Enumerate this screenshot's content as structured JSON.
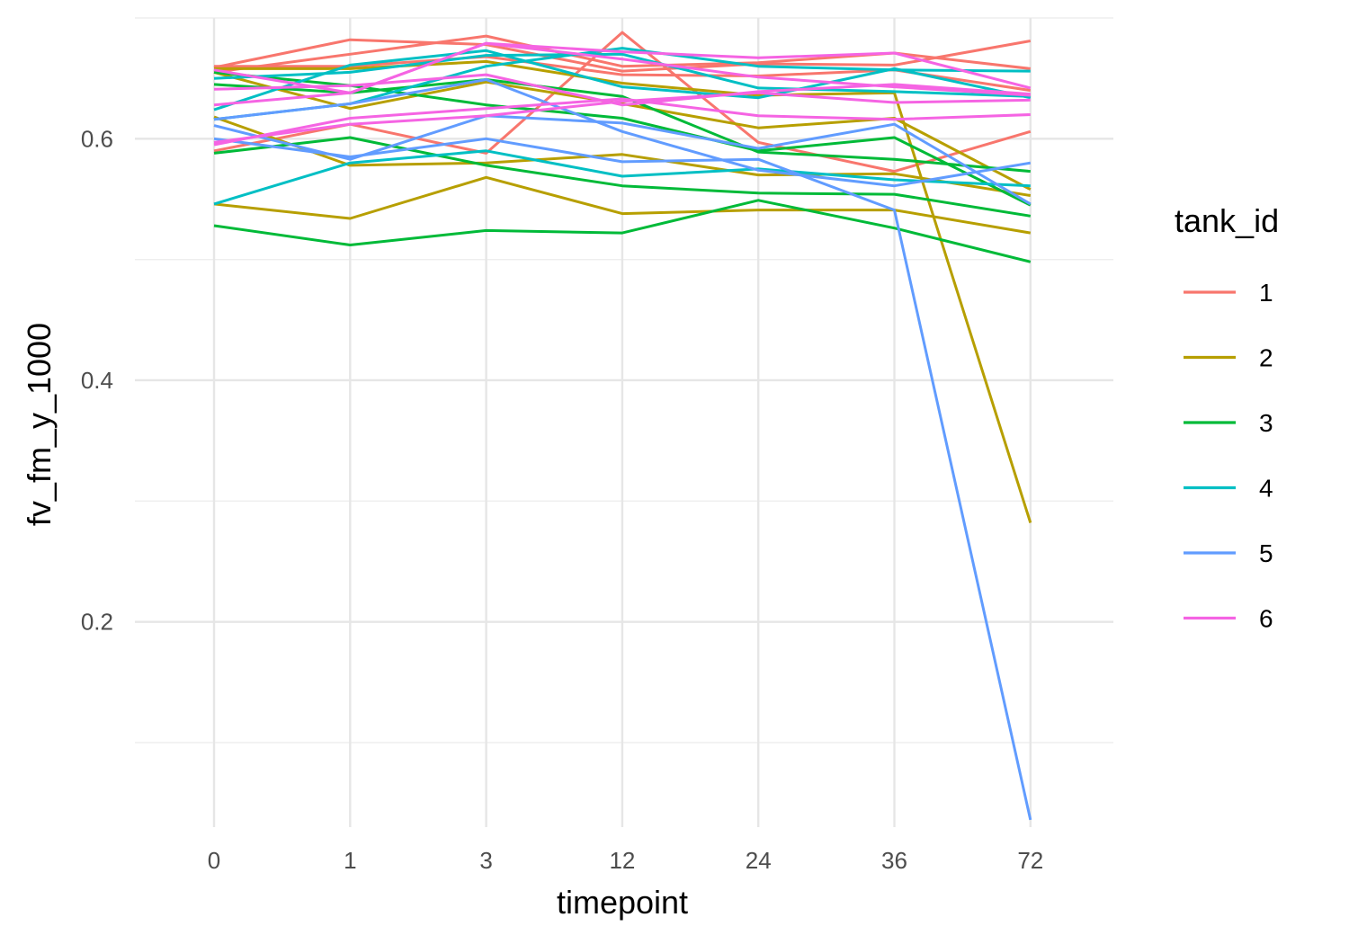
{
  "chart_data": {
    "type": "line",
    "title": "",
    "xlabel": "timepoint",
    "ylabel": "fv_fm_y_1000",
    "categories": [
      "0",
      "1",
      "3",
      "12",
      "24",
      "36",
      "72"
    ],
    "ylim": [
      0.03,
      0.7
    ],
    "yticks": [
      0.2,
      0.4,
      0.6
    ],
    "ytick_labels": [
      "0.2",
      "0.4",
      "0.6"
    ],
    "yminor": [
      0.1,
      0.3,
      0.5,
      0.7
    ],
    "grid": true,
    "legend": {
      "title": "tank_id",
      "position": "right",
      "entries": [
        {
          "label": "1",
          "color": "#F8766D"
        },
        {
          "label": "2",
          "color": "#B79F00"
        },
        {
          "label": "3",
          "color": "#00BA38"
        },
        {
          "label": "4",
          "color": "#00BFC4"
        },
        {
          "label": "5",
          "color": "#619CFF"
        },
        {
          "label": "6",
          "color": "#F564E3"
        }
      ]
    },
    "series": [
      {
        "tank": "1",
        "values": [
          0.659,
          0.682,
          0.678,
          0.656,
          0.662,
          0.661,
          0.681
        ]
      },
      {
        "tank": "1",
        "values": [
          0.655,
          0.67,
          0.685,
          0.66,
          0.663,
          0.671,
          0.658
        ]
      },
      {
        "tank": "1",
        "values": [
          0.59,
          0.612,
          0.588,
          0.688,
          0.597,
          0.573,
          0.606
        ]
      },
      {
        "tank": "1",
        "values": [
          0.66,
          0.66,
          0.668,
          0.653,
          0.652,
          0.657,
          0.64
        ]
      },
      {
        "tank": "2",
        "values": [
          0.618,
          0.578,
          0.58,
          0.587,
          0.57,
          0.571,
          0.553
        ]
      },
      {
        "tank": "2",
        "values": [
          0.658,
          0.658,
          0.664,
          0.646,
          0.636,
          0.638,
          0.282
        ]
      },
      {
        "tank": "2",
        "values": [
          0.546,
          0.534,
          0.568,
          0.538,
          0.541,
          0.541,
          0.522
        ]
      },
      {
        "tank": "2",
        "values": [
          0.655,
          0.625,
          0.647,
          0.629,
          0.609,
          0.617,
          0.558
        ]
      },
      {
        "tank": "3",
        "values": [
          0.528,
          0.512,
          0.524,
          0.522,
          0.549,
          0.526,
          0.498
        ]
      },
      {
        "tank": "3",
        "values": [
          0.588,
          0.601,
          0.578,
          0.561,
          0.555,
          0.554,
          0.536
        ]
      },
      {
        "tank": "3",
        "values": [
          0.645,
          0.638,
          0.649,
          0.635,
          0.589,
          0.583,
          0.573
        ]
      },
      {
        "tank": "3",
        "values": [
          0.655,
          0.644,
          0.628,
          0.617,
          0.59,
          0.601,
          0.545
        ]
      },
      {
        "tank": "4",
        "values": [
          0.546,
          0.58,
          0.59,
          0.569,
          0.575,
          0.566,
          0.561
        ]
      },
      {
        "tank": "4",
        "values": [
          0.616,
          0.629,
          0.66,
          0.675,
          0.66,
          0.657,
          0.656
        ]
      },
      {
        "tank": "4",
        "values": [
          0.624,
          0.661,
          0.673,
          0.643,
          0.634,
          0.658,
          0.634
        ]
      },
      {
        "tank": "4",
        "values": [
          0.65,
          0.655,
          0.669,
          0.67,
          0.642,
          0.639,
          0.635
        ]
      },
      {
        "tank": "5",
        "values": [
          0.6,
          0.585,
          0.6,
          0.581,
          0.583,
          0.541,
          0.036
        ]
      },
      {
        "tank": "5",
        "values": [
          0.611,
          0.583,
          0.619,
          0.613,
          0.592,
          0.612,
          0.546
        ]
      },
      {
        "tank": "5",
        "values": [
          0.616,
          0.629,
          0.649,
          0.606,
          0.574,
          0.561,
          0.58
        ]
      },
      {
        "tank": "6",
        "values": [
          0.595,
          0.617,
          0.625,
          0.633,
          0.619,
          0.616,
          0.62
        ]
      },
      {
        "tank": "6",
        "values": [
          0.641,
          0.644,
          0.653,
          0.628,
          0.639,
          0.645,
          0.637
        ]
      },
      {
        "tank": "6",
        "values": [
          0.628,
          0.638,
          0.679,
          0.672,
          0.667,
          0.671,
          0.642
        ]
      },
      {
        "tank": "6",
        "values": [
          0.597,
          0.612,
          0.619,
          0.631,
          0.638,
          0.63,
          0.632
        ]
      },
      {
        "tank": "6",
        "values": [
          0.657,
          0.638,
          0.679,
          0.666,
          0.651,
          0.643,
          0.636
        ]
      }
    ]
  }
}
